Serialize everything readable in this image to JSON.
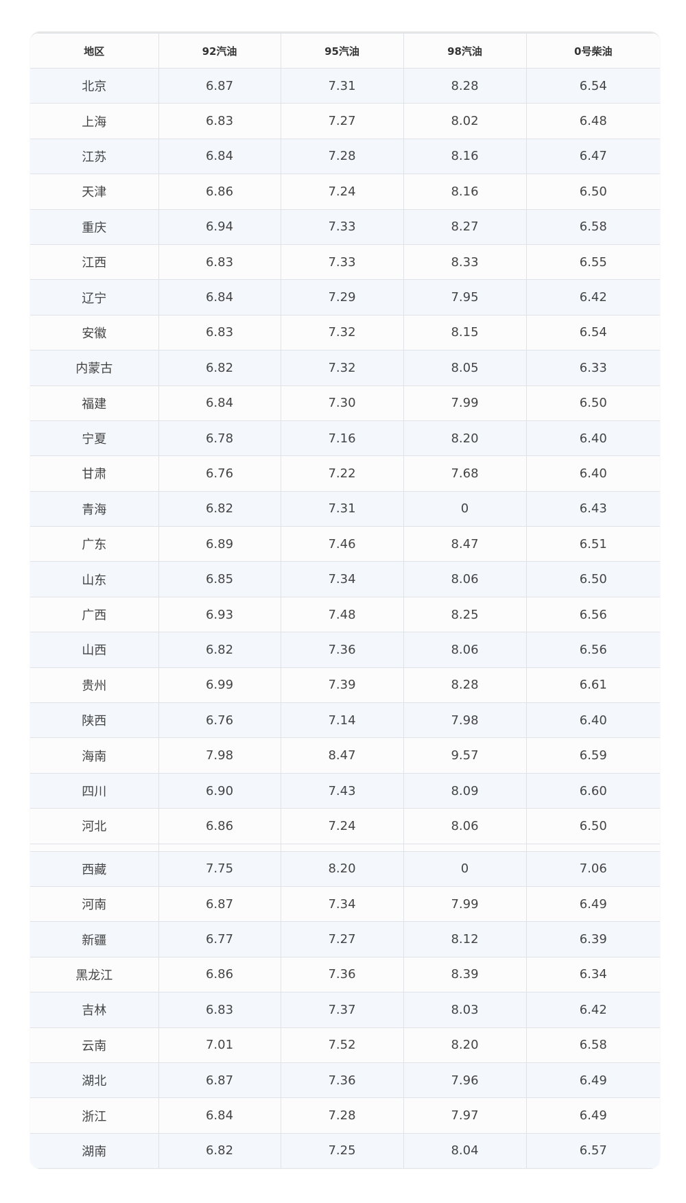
{
  "table": {
    "headers": [
      "地区",
      "92汽油",
      "95汽油",
      "98汽油",
      "0号柴油"
    ],
    "rows_part1": [
      [
        "北京",
        "6.87",
        "7.31",
        "8.28",
        "6.54"
      ],
      [
        "上海",
        "6.83",
        "7.27",
        "8.02",
        "6.48"
      ],
      [
        "江苏",
        "6.84",
        "7.28",
        "8.16",
        "6.47"
      ],
      [
        "天津",
        "6.86",
        "7.24",
        "8.16",
        "6.50"
      ],
      [
        "重庆",
        "6.94",
        "7.33",
        "8.27",
        "6.58"
      ],
      [
        "江西",
        "6.83",
        "7.33",
        "8.33",
        "6.55"
      ],
      [
        "辽宁",
        "6.84",
        "7.29",
        "7.95",
        "6.42"
      ],
      [
        "安徽",
        "6.83",
        "7.32",
        "8.15",
        "6.54"
      ],
      [
        "内蒙古",
        "6.82",
        "7.32",
        "8.05",
        "6.33"
      ],
      [
        "福建",
        "6.84",
        "7.30",
        "7.99",
        "6.50"
      ],
      [
        "宁夏",
        "6.78",
        "7.16",
        "8.20",
        "6.40"
      ],
      [
        "甘肃",
        "6.76",
        "7.22",
        "7.68",
        "6.40"
      ],
      [
        "青海",
        "6.82",
        "7.31",
        "0",
        "6.43"
      ],
      [
        "广东",
        "6.89",
        "7.46",
        "8.47",
        "6.51"
      ],
      [
        "山东",
        "6.85",
        "7.34",
        "8.06",
        "6.50"
      ],
      [
        "广西",
        "6.93",
        "7.48",
        "8.25",
        "6.56"
      ],
      [
        "山西",
        "6.82",
        "7.36",
        "8.06",
        "6.56"
      ],
      [
        "贵州",
        "6.99",
        "7.39",
        "8.28",
        "6.61"
      ],
      [
        "陕西",
        "6.76",
        "7.14",
        "7.98",
        "6.40"
      ],
      [
        "海南",
        "7.98",
        "8.47",
        "9.57",
        "6.59"
      ],
      [
        "四川",
        "6.90",
        "7.43",
        "8.09",
        "6.60"
      ],
      [
        "河北",
        "6.86",
        "7.24",
        "8.06",
        "6.50"
      ]
    ],
    "rows_part2": [
      [
        "西藏",
        "7.75",
        "8.20",
        "0",
        "7.06"
      ],
      [
        "河南",
        "6.87",
        "7.34",
        "7.99",
        "6.49"
      ],
      [
        "新疆",
        "6.77",
        "7.27",
        "8.12",
        "6.39"
      ],
      [
        "黑龙江",
        "6.86",
        "7.36",
        "8.39",
        "6.34"
      ],
      [
        "吉林",
        "6.83",
        "7.37",
        "8.03",
        "6.42"
      ],
      [
        "云南",
        "7.01",
        "7.52",
        "8.20",
        "6.58"
      ],
      [
        "湖北",
        "6.87",
        "7.36",
        "7.96",
        "6.49"
      ],
      [
        "浙江",
        "6.84",
        "7.28",
        "7.97",
        "6.49"
      ],
      [
        "湖南",
        "6.82",
        "7.25",
        "8.04",
        "6.57"
      ]
    ]
  },
  "colors": {
    "stripe": "#f4f8fd",
    "border": "#dfe2e6"
  }
}
